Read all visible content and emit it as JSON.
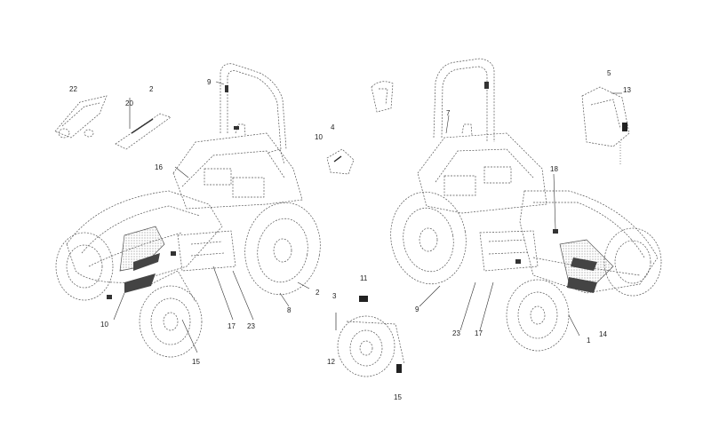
{
  "diagram": {
    "labels": {
      "l22": "22",
      "l2a": "2",
      "l20": "20",
      "l9a": "9",
      "l16": "16",
      "l10a": "10",
      "l4": "4",
      "l10b": "10",
      "l15a": "15",
      "l17a": "17",
      "l23a": "23",
      "l8": "8",
      "l2b": "2",
      "l3": "3",
      "l11": "11",
      "l12": "12",
      "l15b": "15",
      "l7": "7",
      "l5": "5",
      "l13": "13",
      "l18": "18",
      "l9b": "9",
      "l23b": "23",
      "l17b": "17",
      "l1": "1",
      "l14": "14"
    }
  }
}
